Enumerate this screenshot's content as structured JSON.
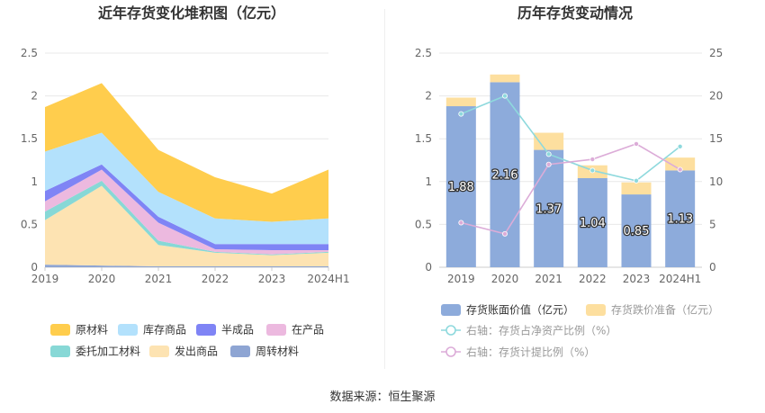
{
  "colors": {
    "raw_material": "#ffcd4d",
    "goods_in_stock": "#b3e1fc",
    "semi_finished": "#7f84f5",
    "in_process": "#ecb9df",
    "consigned_material": "#87d8d6",
    "goods_shipped": "#fde3b2",
    "turnover_material": "#8ea5d3",
    "book_value_bar": "#8dabdb",
    "impairment_bar": "#fddf9f",
    "ratio_line": "#8ed9dd",
    "provision_line": "#dcacd8"
  },
  "chart_data": [
    {
      "type": "area",
      "stacked": true,
      "title": "近年存货变化堆积图（亿元）",
      "categories": [
        "2019",
        "2020",
        "2021",
        "2022",
        "2023",
        "2024H1"
      ],
      "ylim": [
        0,
        2.5
      ],
      "yticks": [
        "0",
        "0.5",
        "1",
        "1.5",
        "2",
        "2.5"
      ],
      "grid": true,
      "legend_position": "bottom",
      "series": [
        {
          "name": "周转材料",
          "color_key": "turnover_material",
          "values": [
            0.03,
            0.02,
            0.01,
            0.01,
            0.01,
            0.01
          ]
        },
        {
          "name": "发出商品",
          "color_key": "goods_shipped",
          "values": [
            0.52,
            0.93,
            0.25,
            0.16,
            0.13,
            0.16
          ]
        },
        {
          "name": "委托加工材料",
          "color_key": "consigned_material",
          "values": [
            0.1,
            0.06,
            0.05,
            0.01,
            0.01,
            0.01
          ]
        },
        {
          "name": "在产品",
          "color_key": "in_process",
          "values": [
            0.12,
            0.13,
            0.21,
            0.03,
            0.05,
            0.02
          ]
        },
        {
          "name": "半成品",
          "color_key": "semi_finished",
          "values": [
            0.12,
            0.06,
            0.07,
            0.06,
            0.07,
            0.07
          ]
        },
        {
          "name": "库存商品",
          "color_key": "goods_in_stock",
          "values": [
            0.46,
            0.37,
            0.29,
            0.3,
            0.26,
            0.3
          ]
        },
        {
          "name": "原材料",
          "color_key": "raw_material",
          "values": [
            0.52,
            0.58,
            0.49,
            0.48,
            0.33,
            0.57
          ]
        }
      ],
      "legend_order": [
        "原材料",
        "库存商品",
        "半成品",
        "在产品",
        "委托加工材料",
        "发出商品",
        "周转材料"
      ]
    },
    {
      "type": "bar",
      "stacked": true,
      "title": "历年存货变动情况",
      "categories": [
        "2019",
        "2020",
        "2021",
        "2022",
        "2023",
        "2024H1"
      ],
      "ylim": [
        0,
        2.5
      ],
      "yticks": [
        "0",
        "0.5",
        "1",
        "1.5",
        "2",
        "2.5"
      ],
      "y2lim": [
        0,
        25
      ],
      "y2ticks": [
        "0",
        "5",
        "10",
        "15",
        "20",
        "25"
      ],
      "grid": true,
      "legend_position": "bottom",
      "series": [
        {
          "name": "存货账面价值（亿元）",
          "kind": "bar",
          "color_key": "book_value_bar",
          "values": [
            1.88,
            2.16,
            1.37,
            1.04,
            0.85,
            1.13
          ],
          "labels": [
            "1.88",
            "2.16",
            "1.37",
            "1.04",
            "0.85",
            "1.13"
          ]
        },
        {
          "name": "存货跌价准备（亿元）",
          "kind": "bar",
          "color_key": "impairment_bar",
          "values": [
            0.1,
            0.09,
            0.2,
            0.15,
            0.14,
            0.15
          ]
        },
        {
          "name": "右轴：存货占净资产比例（%）",
          "kind": "line",
          "axis": "right",
          "color_key": "ratio_line",
          "values": [
            17.9,
            20.0,
            13.2,
            11.3,
            10.1,
            14.1
          ]
        },
        {
          "name": "右轴：存货计提比例（%）",
          "kind": "line",
          "axis": "right",
          "color_key": "provision_line",
          "values": [
            5.2,
            3.9,
            12.0,
            12.6,
            14.4,
            11.4
          ]
        }
      ]
    }
  ],
  "footer": {
    "source": "数据来源：恒生聚源"
  }
}
